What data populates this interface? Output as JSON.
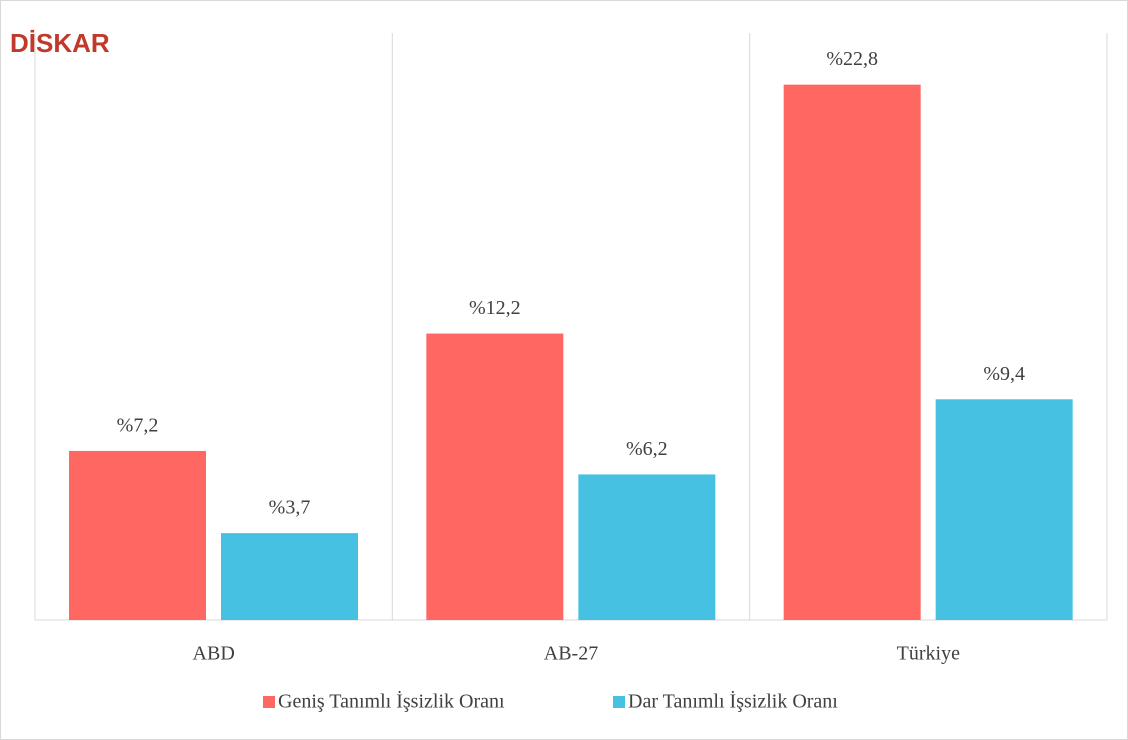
{
  "chart_data": {
    "type": "bar",
    "logo": "DİSKAR",
    "categories": [
      "ABD",
      "AB-27",
      "Türkiye"
    ],
    "series": [
      {
        "name": "Geniş Tanımlı İşsizlik Oranı",
        "color": "#ff6862",
        "values": [
          7.2,
          12.2,
          22.8
        ],
        "value_labels": [
          "%7,2",
          "%12,2",
          "%22,8"
        ]
      },
      {
        "name": "Dar Tanımlı İşsizlik Oranı",
        "color": "#47c1e1",
        "values": [
          3.7,
          6.2,
          9.4
        ],
        "value_labels": [
          "%3,7",
          "%6,2",
          "%9,4"
        ]
      }
    ],
    "ylim": [
      0,
      25
    ],
    "legend": "bottom"
  }
}
